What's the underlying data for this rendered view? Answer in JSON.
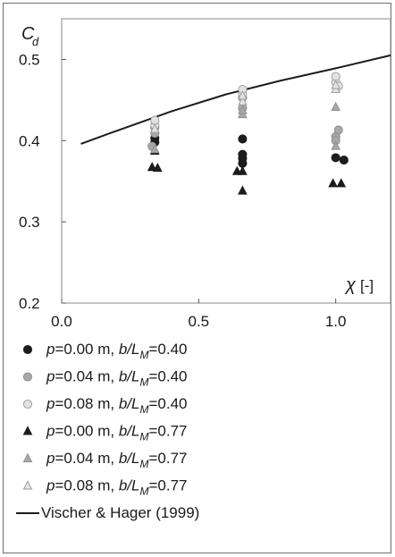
{
  "chart_data": {
    "type": "scatter",
    "title": "",
    "ylabel_symbol": "C",
    "ylabel_sub": "d",
    "xlabel_symbol": "χ",
    "xlabel_unit": "[-]",
    "xlim": [
      0.0,
      1.2
    ],
    "ylim": [
      0.2,
      0.55
    ],
    "xticks": [
      {
        "value": 0.0,
        "label": "0.0"
      },
      {
        "value": 0.5,
        "label": "0.5"
      },
      {
        "value": 1.0,
        "label": "1.0"
      }
    ],
    "yticks": [
      {
        "value": 0.2,
        "label": "0.2"
      },
      {
        "value": 0.3,
        "label": "0.3"
      },
      {
        "value": 0.4,
        "label": "0.4"
      },
      {
        "value": 0.5,
        "label": "0.5"
      }
    ],
    "grid": false,
    "legend_position": "below",
    "colors": {
      "dark": "#1c1c1c",
      "mid": "#a8a8a8",
      "light": "#e2e2e2",
      "line": "#1c1c1c"
    },
    "series": [
      {
        "label": {
          "a": "p",
          "b": "=0.00 m, ",
          "c": "b/L",
          "sub": "M",
          "d": "=0.40"
        },
        "marker": "circle",
        "fill": "dark",
        "points": [
          [
            0.34,
            0.403
          ],
          [
            0.34,
            0.398
          ],
          [
            0.66,
            0.402
          ],
          [
            0.66,
            0.383
          ],
          [
            0.66,
            0.378
          ],
          [
            0.66,
            0.372
          ],
          [
            1.0,
            0.379
          ],
          [
            1.03,
            0.376
          ]
        ]
      },
      {
        "label": {
          "a": "p",
          "b": "=0.04 m, ",
          "c": "b/L",
          "sub": "M",
          "d": "=0.40"
        },
        "marker": "circle",
        "fill": "mid",
        "points": [
          [
            0.33,
            0.393
          ],
          [
            0.34,
            0.409
          ],
          [
            0.34,
            0.416
          ],
          [
            0.66,
            0.44
          ],
          [
            0.66,
            0.453
          ],
          [
            1.0,
            0.405
          ],
          [
            1.0,
            0.4
          ],
          [
            1.01,
            0.413
          ]
        ]
      },
      {
        "label": {
          "a": "p",
          "b": "=0.08 m, ",
          "c": "b/L",
          "sub": "M",
          "d": "=0.40"
        },
        "marker": "circle",
        "fill": "light",
        "points": [
          [
            0.34,
            0.419
          ],
          [
            0.34,
            0.425
          ],
          [
            0.66,
            0.458
          ],
          [
            0.66,
            0.463
          ],
          [
            1.0,
            0.472
          ],
          [
            1.0,
            0.479
          ],
          [
            1.01,
            0.467
          ]
        ]
      },
      {
        "label": {
          "a": "p",
          "b": "=0.00 m, ",
          "c": "b/L",
          "sub": "M",
          "d": "=0.77"
        },
        "marker": "triangle",
        "fill": "dark",
        "points": [
          [
            0.33,
            0.367
          ],
          [
            0.35,
            0.366
          ],
          [
            0.34,
            0.387
          ],
          [
            0.64,
            0.362
          ],
          [
            0.66,
            0.362
          ],
          [
            0.66,
            0.338
          ],
          [
            0.99,
            0.347
          ],
          [
            1.02,
            0.347
          ]
        ]
      },
      {
        "label": {
          "a": "p",
          "b": "=0.04 m, ",
          "c": "b/L",
          "sub": "M",
          "d": "=0.77"
        },
        "marker": "triangle",
        "fill": "mid",
        "points": [
          [
            0.34,
            0.389
          ],
          [
            0.66,
            0.432
          ],
          [
            0.66,
            0.437
          ],
          [
            1.0,
            0.441
          ],
          [
            1.0,
            0.393
          ]
        ]
      },
      {
        "label": {
          "a": "p",
          "b": "=0.08 m, ",
          "c": "b/L",
          "sub": "M",
          "d": "=0.77"
        },
        "marker": "triangle",
        "fill": "light",
        "points": [
          [
            0.34,
            0.414
          ],
          [
            0.66,
            0.448
          ],
          [
            0.66,
            0.455
          ],
          [
            1.0,
            0.463
          ],
          [
            1.0,
            0.468
          ]
        ]
      }
    ],
    "line": {
      "label": "Vischer & Hager (1999)",
      "x": [
        0.07,
        0.2,
        0.4,
        0.6,
        0.8,
        1.0,
        1.2
      ],
      "y": [
        0.396,
        0.412,
        0.436,
        0.457,
        0.474,
        0.489,
        0.505
      ]
    }
  }
}
